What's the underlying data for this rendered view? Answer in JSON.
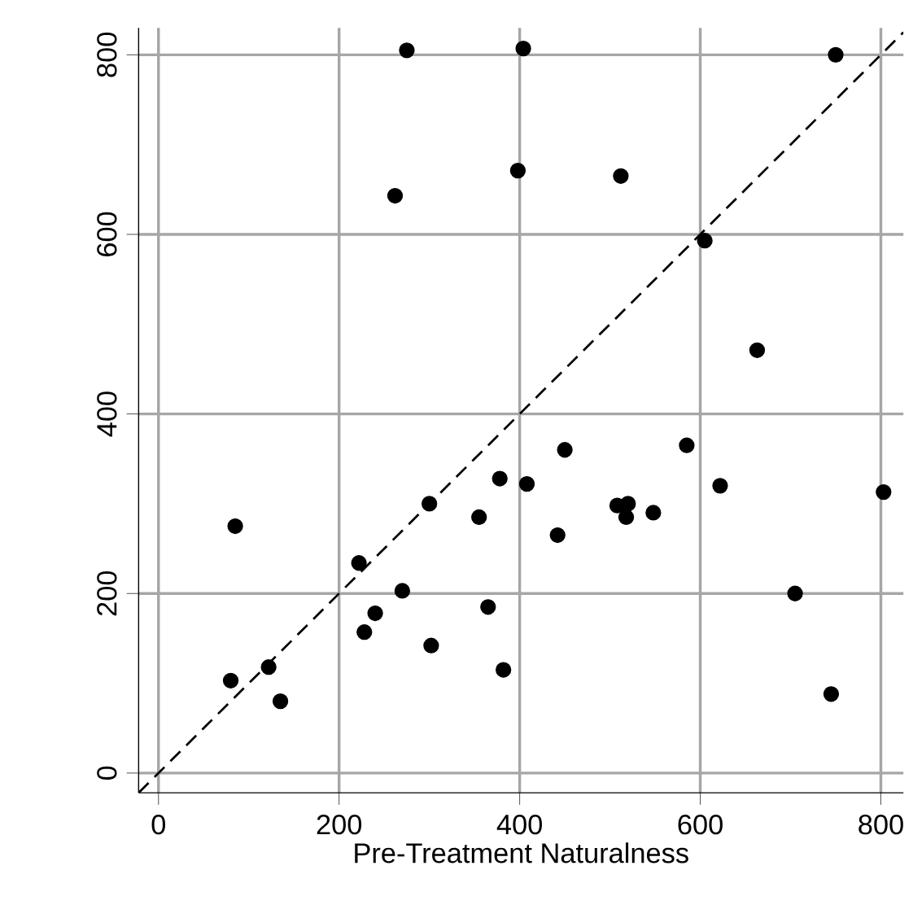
{
  "chart_data": {
    "type": "scatter",
    "xlabel": "Pre-Treatment Naturalness",
    "xlim": [
      -22,
      825
    ],
    "ylim": [
      -22,
      830
    ],
    "xticks": [
      0,
      200,
      400,
      600,
      800
    ],
    "yticks": [
      0,
      200,
      400,
      600,
      800
    ],
    "grid": true,
    "marker": "circle",
    "series": [
      {
        "color": "#000000",
        "x": [
          85,
          80,
          122,
          135,
          222,
          228,
          240,
          270,
          300,
          302,
          355,
          365,
          378,
          382,
          408,
          442,
          450,
          508,
          518,
          520,
          548,
          585,
          622,
          705,
          745,
          803,
          262,
          398,
          512,
          605,
          663,
          275,
          404,
          750
        ],
        "values": [
          275,
          103,
          118,
          80,
          234,
          157,
          178,
          203,
          300,
          142,
          285,
          185,
          328,
          115,
          322,
          265,
          360,
          298,
          285,
          300,
          290,
          365,
          320,
          200,
          88,
          313,
          643,
          671,
          665,
          593,
          471,
          805,
          807,
          800
        ]
      },
      {
        "type": "line",
        "color": "#000000",
        "line_style": "dashed",
        "marker": "none",
        "x": [
          -22,
          825
        ],
        "values": [
          -22,
          825
        ]
      }
    ]
  }
}
